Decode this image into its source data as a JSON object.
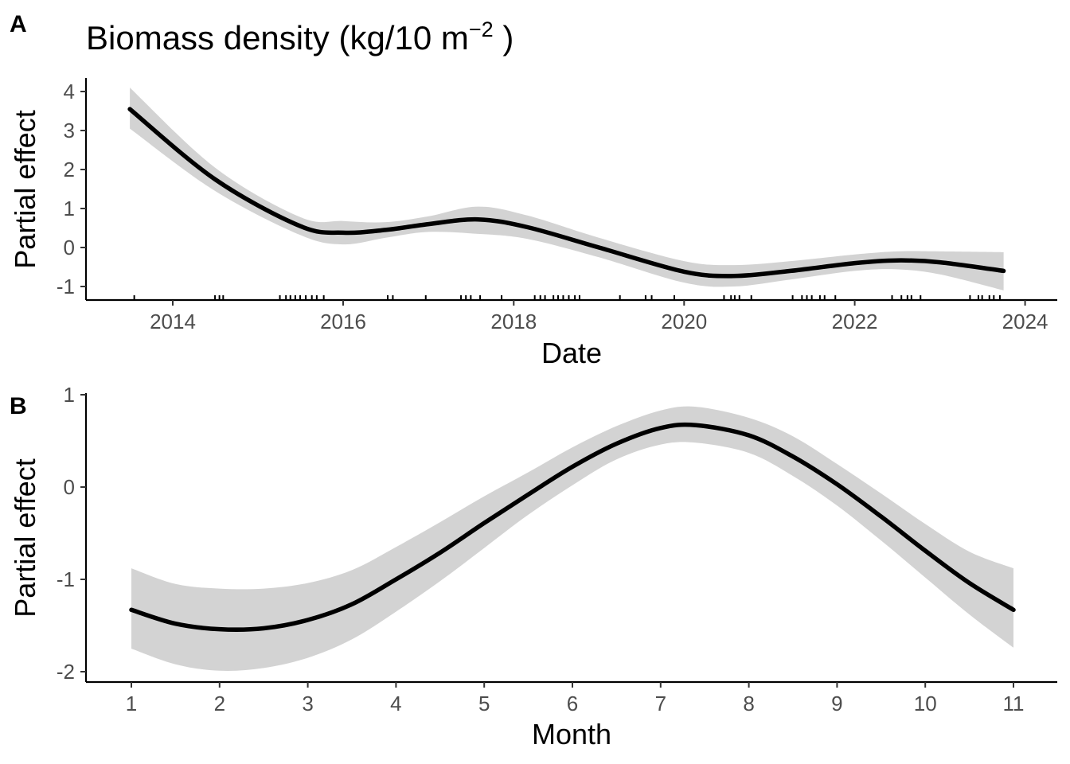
{
  "figure": {
    "title_main": "Biomass density (kg/10 m",
    "title_sup": "−2",
    "title_end": " )"
  },
  "chart_data": [
    {
      "panel": "A",
      "type": "line",
      "xlabel": "Date",
      "ylabel": "Partial effect",
      "x_ticks": [
        "2014",
        "2016",
        "2018",
        "2020",
        "2022",
        "2024"
      ],
      "y_ticks": [
        "4",
        "3",
        "2",
        "1",
        "0",
        "-1"
      ],
      "xlim": [
        "2013-01-01",
        "2024-01-01"
      ],
      "ylim": [
        -1.35,
        4.3
      ],
      "grid": false,
      "series": [
        {
          "x": [
            "2013-07-01",
            "2014-07-01",
            "2015-07-01",
            "2016-01-01",
            "2016-07-01",
            "2017-01-01",
            "2017-08-01",
            "2018-03-01",
            "2019-01-01",
            "2020-01-01",
            "2020-08-01",
            "2021-04-01",
            "2022-01-01",
            "2022-07-01",
            "2023-01-01",
            "2023-10-01"
          ],
          "y": [
            3.55,
            1.75,
            0.55,
            0.38,
            0.45,
            0.6,
            0.72,
            0.52,
            0.0,
            -0.62,
            -0.73,
            -0.6,
            -0.4,
            -0.33,
            -0.38,
            -0.6
          ],
          "lower": [
            3.05,
            1.45,
            0.32,
            0.08,
            0.25,
            0.4,
            0.35,
            0.22,
            -0.25,
            -0.9,
            -1.0,
            -0.82,
            -0.6,
            -0.56,
            -0.69,
            -1.1
          ],
          "upper": [
            4.1,
            2.05,
            0.78,
            0.68,
            0.65,
            0.8,
            1.05,
            0.82,
            0.25,
            -0.35,
            -0.45,
            -0.35,
            -0.18,
            -0.1,
            -0.1,
            -0.12
          ]
        }
      ],
      "rug": [
        "2013-07-20",
        "2014-07-01",
        "2014-07-20",
        "2014-08-05",
        "2015-04-05",
        "2015-05-01",
        "2015-05-20",
        "2015-06-10",
        "2015-07-01",
        "2015-07-25",
        "2015-08-20",
        "2015-09-10",
        "2015-10-10",
        "2016-07-10",
        "2016-08-01",
        "2016-12-20",
        "2017-05-20",
        "2017-06-10",
        "2017-07-01",
        "2017-08-10",
        "2017-11-10",
        "2018-04-01",
        "2018-04-25",
        "2018-05-15",
        "2018-06-20",
        "2018-07-10",
        "2018-08-01",
        "2018-08-25",
        "2018-09-20",
        "2018-10-10",
        "2019-04-01",
        "2019-07-20",
        "2019-08-15",
        "2019-11-20",
        "2020-06-20",
        "2020-07-20",
        "2020-08-05",
        "2020-08-25",
        "2020-10-15",
        "2021-04-10",
        "2021-05-20",
        "2021-06-10",
        "2021-07-01",
        "2021-08-05",
        "2021-08-25",
        "2021-10-10",
        "2022-06-10",
        "2022-07-20",
        "2022-08-15",
        "2022-09-01",
        "2022-10-10",
        "2023-05-10",
        "2023-06-15",
        "2023-07-01",
        "2023-08-01",
        "2023-08-20",
        "2023-09-15"
      ]
    },
    {
      "panel": "B",
      "type": "line",
      "xlabel": "Month",
      "ylabel": "Partial effect",
      "x_ticks": [
        "1",
        "2",
        "3",
        "4",
        "5",
        "6",
        "7",
        "8",
        "9",
        "10",
        "11"
      ],
      "y_ticks": [
        "1",
        "0",
        "-1",
        "-2"
      ],
      "xlim": [
        0.5,
        11.5
      ],
      "ylim": [
        -2.1,
        1.0
      ],
      "grid": false,
      "series": [
        {
          "x": [
            1,
            1.5,
            2,
            2.5,
            3,
            3.5,
            4,
            4.5,
            5,
            5.5,
            6,
            6.5,
            7,
            7.4,
            8,
            8.5,
            9,
            9.5,
            10,
            10.5,
            11
          ],
          "y": [
            -1.33,
            -1.48,
            -1.54,
            -1.53,
            -1.44,
            -1.27,
            -1.0,
            -0.71,
            -0.39,
            -0.08,
            0.22,
            0.47,
            0.64,
            0.67,
            0.56,
            0.33,
            0.03,
            -0.32,
            -0.69,
            -1.04,
            -1.33
          ],
          "lower": [
            -1.75,
            -1.92,
            -1.99,
            -1.96,
            -1.85,
            -1.65,
            -1.35,
            -1.02,
            -0.66,
            -0.3,
            0.02,
            0.3,
            0.46,
            0.48,
            0.37,
            0.12,
            -0.2,
            -0.58,
            -0.98,
            -1.38,
            -1.74
          ],
          "upper": [
            -0.88,
            -1.05,
            -1.1,
            -1.1,
            -1.04,
            -0.9,
            -0.65,
            -0.38,
            -0.1,
            0.16,
            0.43,
            0.66,
            0.83,
            0.87,
            0.75,
            0.55,
            0.25,
            -0.07,
            -0.4,
            -0.7,
            -0.88
          ]
        }
      ]
    }
  ]
}
